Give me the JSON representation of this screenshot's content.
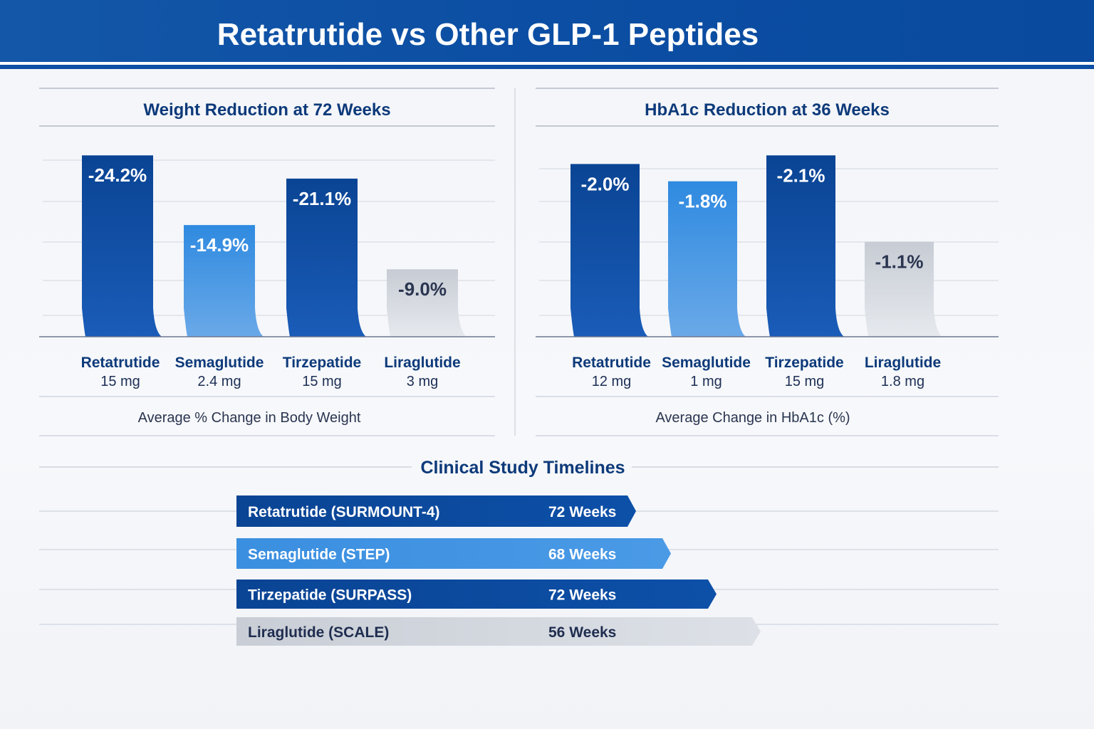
{
  "title": "Retatrutide vs Other GLP-1 Peptides",
  "colors": {
    "header": "#0b4ea3",
    "dark_blue": "#0a4797",
    "light_blue": "#3a8fe0",
    "gray": "#cfd3da",
    "text_navy": "#0d3a7a"
  },
  "chart_data": [
    {
      "type": "bar",
      "title": "Weight Reduction at 72 Weeks",
      "xlabel": "Average % Change in Body Weight",
      "categories": [
        {
          "name": "Retatrutide",
          "dose": "15 mg"
        },
        {
          "name": "Semaglutide",
          "dose": "2.4 mg"
        },
        {
          "name": "Tirzepatide",
          "dose": "15 mg"
        },
        {
          "name": "Liraglutide",
          "dose": "3 mg"
        }
      ],
      "values": [
        -24.2,
        -14.9,
        -21.1,
        -9.0
      ],
      "labels": [
        "-24.2%",
        "-14.9%",
        "-21.1%",
        "-9.0%"
      ],
      "colors": [
        "dark_blue",
        "light_blue",
        "dark_blue",
        "gray"
      ],
      "ylim": [
        -26.5,
        0
      ],
      "grid": true
    },
    {
      "type": "bar",
      "title": "HbA1c Reduction at 36 Weeks",
      "xlabel": "Average Change in HbA1c (%)",
      "categories": [
        {
          "name": "Retatrutide",
          "dose": "12 mg"
        },
        {
          "name": "Semaglutide",
          "dose": "1 mg"
        },
        {
          "name": "Tirzepatide",
          "dose": "15 mg"
        },
        {
          "name": "Liraglutide",
          "dose": "1.8 mg"
        }
      ],
      "values": [
        -2.0,
        -1.8,
        -2.1,
        -1.1
      ],
      "labels": [
        "-2.0%",
        "-1.8%",
        "-2.1%",
        "-1.1%"
      ],
      "colors": [
        "dark_blue",
        "light_blue",
        "dark_blue",
        "gray"
      ],
      "ylim": [
        -2.3,
        0
      ],
      "grid": true
    }
  ],
  "timeline": {
    "title": "Clinical Study Timelines",
    "rows": [
      {
        "name": "Retatrutide (SURMOUNT-4)",
        "weeks": "72 Weeks",
        "color": "dark_blue"
      },
      {
        "name": "Semaglutide (STEP)",
        "weeks": "68 Weeks",
        "color": "light_blue"
      },
      {
        "name": "Tirzepatide (SURPASS)",
        "weeks": "72 Weeks",
        "color": "dark_blue"
      },
      {
        "name": "Liraglutide (SCALE)",
        "weeks": "56 Weeks",
        "color": "gray"
      }
    ]
  }
}
